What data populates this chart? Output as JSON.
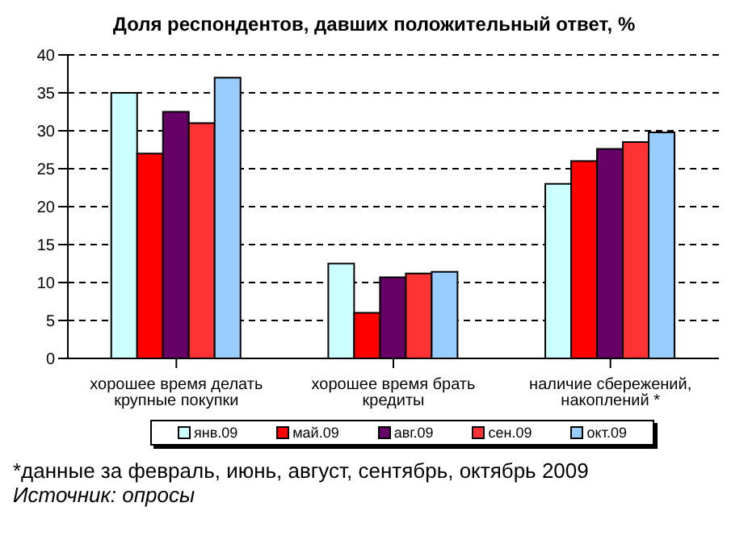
{
  "chart_data": {
    "type": "bar",
    "title": "Доля респондентов, давших положительный ответ, %",
    "categories": [
      "хорошее время делать крупные покупки",
      "хорошее время брать кредиты",
      "наличие сбережений, накоплений *"
    ],
    "series": [
      {
        "name": "янв.09",
        "color": "#ccffff",
        "values": [
          35,
          12.5,
          23
        ]
      },
      {
        "name": "май.09",
        "color": "#ff0000",
        "values": [
          27,
          6,
          26
        ]
      },
      {
        "name": "авг.09",
        "color": "#660066",
        "values": [
          32.5,
          10.7,
          27.6
        ]
      },
      {
        "name": "сен.09",
        "color": "#ff3333",
        "values": [
          31,
          11.2,
          28.5
        ]
      },
      {
        "name": "окт.09",
        "color": "#99ccff",
        "values": [
          37,
          11.4,
          29.8
        ]
      }
    ],
    "ylim": [
      0,
      40
    ],
    "yticks": [
      0,
      5,
      10,
      15,
      20,
      25,
      30,
      35,
      40
    ],
    "grid": "y",
    "legend": "bottom",
    "annotations": [
      "*данные за февраль, июнь, август, сентябрь, октябрь 2009",
      "Источник: опросы"
    ]
  }
}
